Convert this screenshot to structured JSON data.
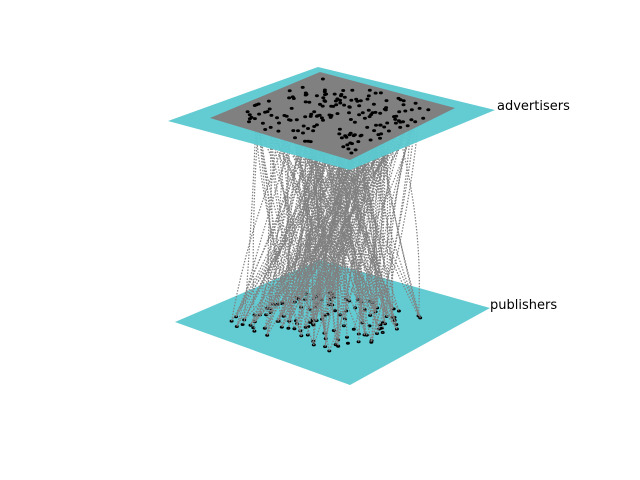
{
  "figure": {
    "type": "multilayer-network-3d",
    "plane_color": "#5bc8d0",
    "edge_color": "#808080",
    "node_color": "#000000",
    "layers": [
      {
        "label": "advertisers",
        "position": "top"
      },
      {
        "label": "publishers",
        "position": "bottom"
      }
    ]
  }
}
